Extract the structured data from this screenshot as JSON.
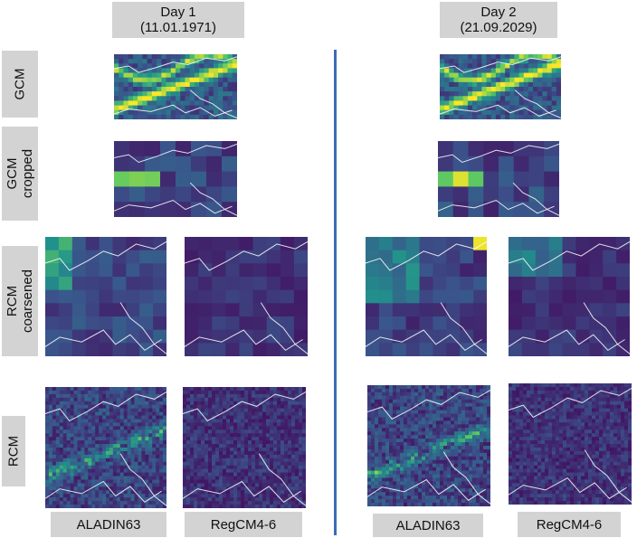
{
  "columns": [
    {
      "title": "Day 1",
      "date": "(11.01.1971)"
    },
    {
      "title": "Day 2",
      "date": "(21.09.2029)"
    }
  ],
  "rows": {
    "gcm": [
      "GCM"
    ],
    "gcm_cropped": [
      "GCM",
      "cropped"
    ],
    "rcm_coarsened": [
      "RCM",
      "coarsened"
    ],
    "rcm": [
      "RCM"
    ]
  },
  "models": [
    "ALADIN63",
    "RegCM4-6",
    "ALADIN63",
    "RegCM4-6"
  ],
  "colors": {
    "label_bg": "#d3d3d3",
    "divider": "#3f69b5",
    "viridis_low": "#440154",
    "viridis_high": "#fde725",
    "coastline": "#ffffff"
  }
}
